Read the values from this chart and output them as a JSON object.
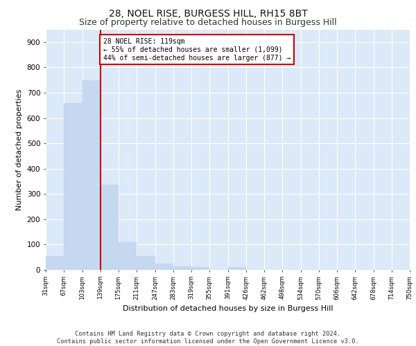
{
  "title": "28, NOEL RISE, BURGESS HILL, RH15 8BT",
  "subtitle": "Size of property relative to detached houses in Burgess Hill",
  "xlabel": "Distribution of detached houses by size in Burgess Hill",
  "ylabel": "Number of detached properties",
  "bar_values": [
    55,
    660,
    750,
    335,
    110,
    55,
    25,
    15,
    10,
    0,
    10,
    0,
    0,
    0,
    0,
    0,
    0,
    0,
    0,
    0
  ],
  "bin_labels": [
    "31sqm",
    "67sqm",
    "103sqm",
    "139sqm",
    "175sqm",
    "211sqm",
    "247sqm",
    "283sqm",
    "319sqm",
    "355sqm",
    "391sqm",
    "426sqm",
    "462sqm",
    "498sqm",
    "534sqm",
    "570sqm",
    "606sqm",
    "642sqm",
    "678sqm",
    "714sqm",
    "750sqm"
  ],
  "bar_color": "#c5d8f0",
  "bar_edgecolor": "#c5d8f0",
  "vline_color": "#cc0000",
  "vline_pos": 2.5,
  "annotation_text": "28 NOEL RISE: 119sqm\n← 55% of detached houses are smaller (1,099)\n44% of semi-detached houses are larger (877) →",
  "annotation_box_facecolor": "#ffffff",
  "annotation_box_edgecolor": "#cc0000",
  "ylim": [
    0,
    950
  ],
  "yticks": [
    0,
    100,
    200,
    300,
    400,
    500,
    600,
    700,
    800,
    900
  ],
  "background_color": "#dce9f8",
  "grid_color": "#ffffff",
  "footer_line1": "Contains HM Land Registry data © Crown copyright and database right 2024.",
  "footer_line2": "Contains public sector information licensed under the Open Government Licence v3.0.",
  "title_fontsize": 10,
  "subtitle_fontsize": 9,
  "ylabel_fontsize": 8,
  "xlabel_fontsize": 8
}
